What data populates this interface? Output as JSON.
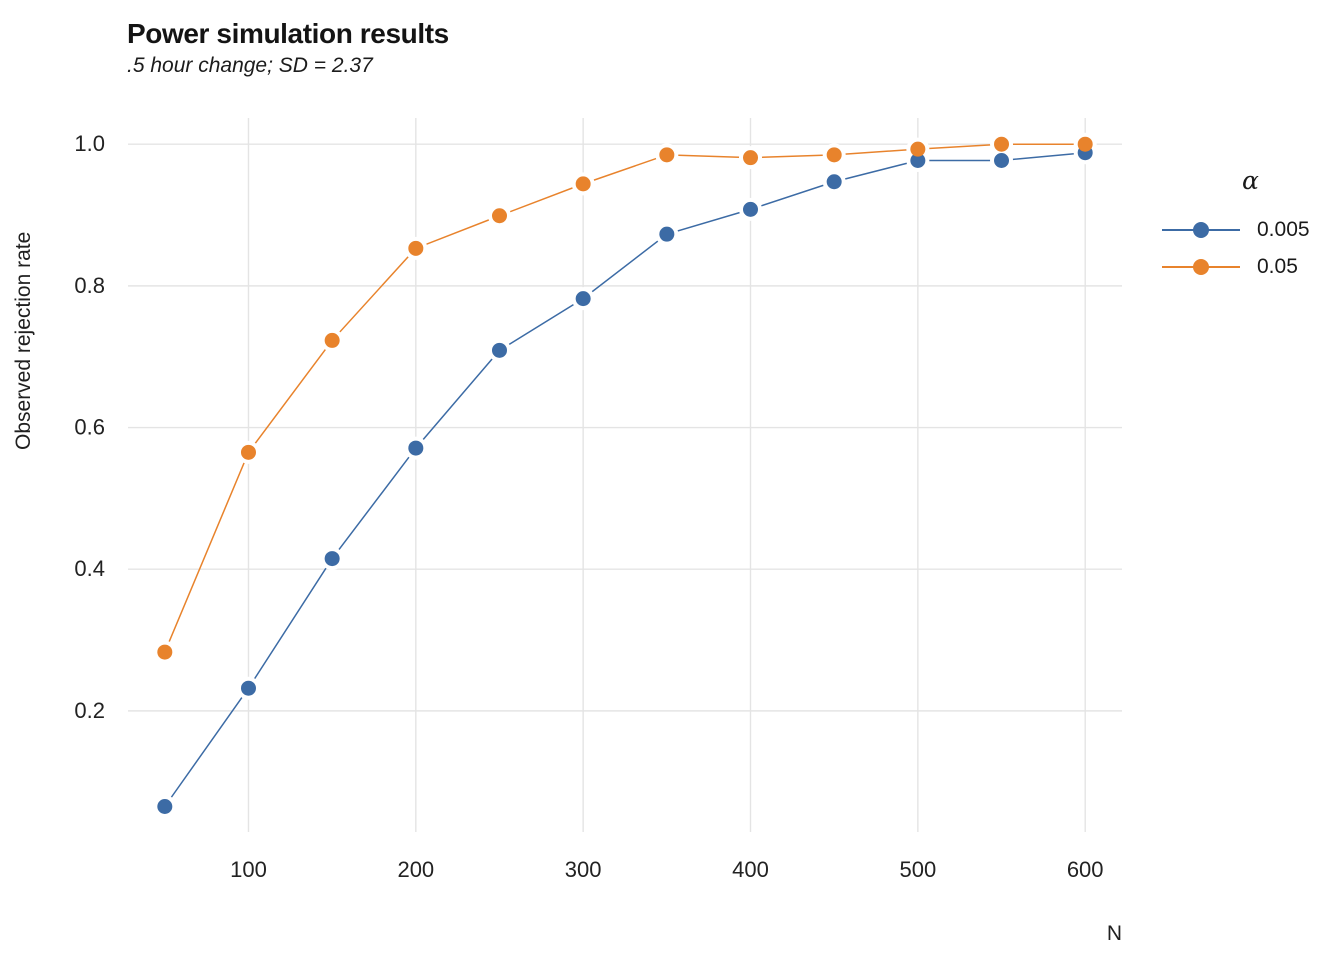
{
  "chart_data": {
    "type": "line",
    "title": "Power simulation results",
    "subtitle": ".5 hour change; SD = 2.37",
    "xlabel": "N",
    "ylabel": "Observed rejection rate",
    "legend_title": "α",
    "legend_position": "right",
    "grid": true,
    "background": "#ffffff",
    "gridline_color": "#e4e4e4",
    "x": [
      50,
      100,
      150,
      200,
      250,
      300,
      350,
      400,
      450,
      500,
      550,
      600
    ],
    "series": [
      {
        "name": "0.005",
        "color": "#3c6ba5",
        "values": [
          0.065,
          0.232,
          0.415,
          0.571,
          0.709,
          0.782,
          0.873,
          0.908,
          0.947,
          0.977,
          0.977,
          0.988
        ]
      },
      {
        "name": "0.05",
        "color": "#e8832c",
        "values": [
          0.283,
          0.565,
          0.723,
          0.853,
          0.899,
          0.944,
          0.985,
          0.981,
          0.985,
          0.993,
          1.0,
          1.0
        ]
      }
    ],
    "x_ticks": [
      {
        "value": 100,
        "label": "100"
      },
      {
        "value": 200,
        "label": "200"
      },
      {
        "value": 300,
        "label": "300"
      },
      {
        "value": 400,
        "label": "400"
      },
      {
        "value": 500,
        "label": "500"
      },
      {
        "value": 600,
        "label": "600"
      }
    ],
    "y_ticks": [
      {
        "value": 0.2,
        "label": "0.2"
      },
      {
        "value": 0.4,
        "label": "0.4"
      },
      {
        "value": 0.6,
        "label": "0.6"
      },
      {
        "value": 0.8,
        "label": "0.8"
      },
      {
        "value": 1.0,
        "label": "1.0"
      }
    ],
    "x_domain": [
      28,
      622
    ],
    "y_domain": [
      0.029,
      1.037
    ]
  }
}
